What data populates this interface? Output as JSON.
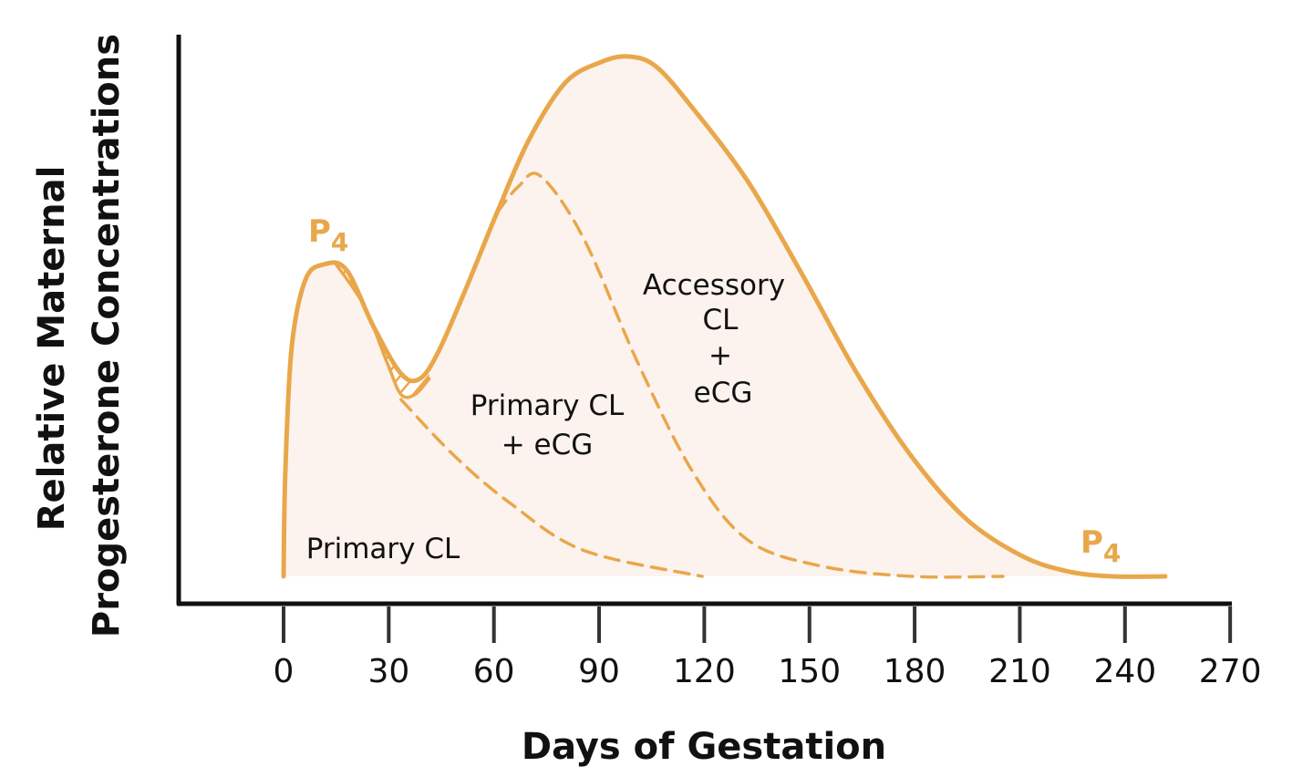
{
  "chart_data": {
    "type": "area",
    "xlabel": "Days of Gestation",
    "ylabel_lines": [
      "Relative Maternal",
      "Progesterone Concentrations"
    ],
    "xlim": [
      -30,
      270
    ],
    "ylim": [
      0,
      1
    ],
    "y_units": "relative",
    "x_ticks": [
      0,
      30,
      60,
      90,
      120,
      150,
      180,
      210,
      240,
      270
    ],
    "x_tick_labels": [
      "0",
      "30",
      "60",
      "90",
      "120",
      "150",
      "180",
      "210",
      "240",
      "270"
    ],
    "grid": false,
    "colors": {
      "curve": "#e9a74b",
      "fill": "#fcf3ee",
      "axis": "#111111",
      "text": "#111111"
    },
    "series": [
      {
        "id": "total",
        "style": "solid",
        "x": [
          0,
          0.5,
          2.3,
          6.2,
          11.4,
          17.9,
          25.7,
          33.5,
          38.8,
          44,
          51.8,
          60.9,
          70,
          80.4,
          90.8,
          98.6,
          106.4,
          116.8,
          132.4,
          148,
          163.6,
          179.2,
          194.8,
          210.4,
          223.4,
          236.4,
          251.5
        ],
        "y": [
          0,
          0.2,
          0.44,
          0.57,
          0.6,
          0.59,
          0.48,
          0.39,
          0.38,
          0.43,
          0.55,
          0.7,
          0.84,
          0.95,
          0.99,
          1.0,
          0.98,
          0.9,
          0.76,
          0.58,
          0.39,
          0.23,
          0.11,
          0.04,
          0.01,
          0.0,
          0.0
        ]
      },
      {
        "id": "primary-cl-hatch-lower",
        "style": "solid",
        "x": [
          15,
          23,
          29.6,
          33.5,
          37.5,
          41.5
        ],
        "y": [
          0.6,
          0.52,
          0.41,
          0.35,
          0.35,
          0.38
        ]
      },
      {
        "id": "primary-cl",
        "style": "dashed",
        "x": [
          33.5,
          49,
          64.8,
          85.6,
          119.4
        ],
        "y": [
          0.34,
          0.23,
          0.14,
          0.05,
          0.0
        ]
      },
      {
        "id": "primary-cl-ecg",
        "style": "dashed",
        "x": [
          60.9,
          67,
          73.3,
          85.6,
          101.1,
          116.8,
          132.4,
          153.2,
          179.2,
          205.2
        ],
        "y": [
          0.7,
          0.75,
          0.77,
          0.65,
          0.41,
          0.2,
          0.07,
          0.02,
          0.0,
          0.0
        ]
      }
    ],
    "annotations": {
      "p4_top": {
        "base": "P",
        "sub": "4"
      },
      "p4_end": {
        "base": "P",
        "sub": "4"
      },
      "primary_cl": "Primary CL",
      "primary_cl_ecg": [
        "Primary CL",
        "+ eCG"
      ],
      "accessory_cl_ecg": [
        "Accessory",
        "CL",
        "+",
        "eCG"
      ]
    }
  }
}
